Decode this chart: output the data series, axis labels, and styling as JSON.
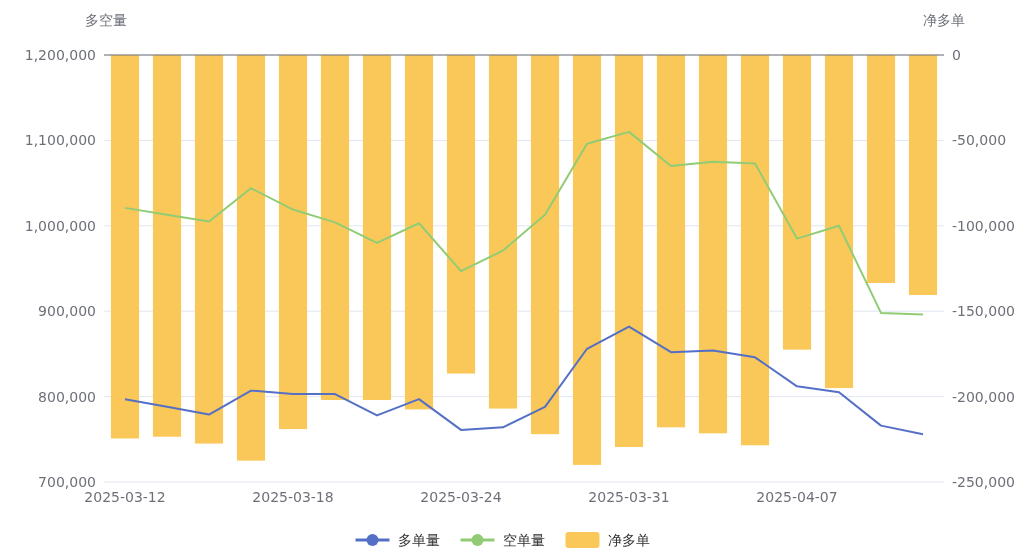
{
  "chart_data": {
    "type": "line",
    "ylabel": "多空量",
    "y2label": "净多单",
    "categories": [
      "2025-03-12",
      null,
      null,
      null,
      "2025-03-18",
      null,
      null,
      null,
      "2025-03-24",
      null,
      null,
      null,
      "2025-03-31",
      null,
      null,
      null,
      "2025-04-07",
      null,
      null,
      null
    ],
    "series": [
      {
        "name": "多单量",
        "color": "#5470c6",
        "values": [
          797000,
          788000,
          779000,
          807000,
          803000,
          803000,
          778000,
          797000,
          761000,
          764000,
          788000,
          856000,
          882000,
          852000,
          854000,
          846000,
          812000,
          805000,
          766000,
          756000
        ]
      },
      {
        "name": "空单量",
        "color": "#91cc75",
        "values": [
          1021000,
          1013000,
          1005000,
          1044000,
          1019000,
          1004000,
          980000,
          1003000,
          947000,
          971000,
          1013000,
          1096000,
          1110000,
          1070000,
          1075000,
          1073000,
          985000,
          1000000,
          898000,
          896000
        ]
      },
      {
        "name": "净多单",
        "type": "bar",
        "axis": "y2",
        "color": "#fac858",
        "values": [
          -224500,
          -223500,
          -227500,
          -237500,
          -219000,
          -202000,
          -202000,
          -207500,
          -186500,
          -207000,
          -222000,
          -240000,
          -229500,
          -218000,
          -221500,
          -228500,
          -172500,
          -195000,
          -133500,
          -140500
        ]
      }
    ],
    "ylim": [
      700000,
      1200000
    ],
    "yticks": [
      {
        "value": 700000,
        "label": "700,000"
      },
      {
        "value": 800000,
        "label": "800,000"
      },
      {
        "value": 900000,
        "label": "900,000"
      },
      {
        "value": 1000000,
        "label": "1,000,000"
      },
      {
        "value": 1100000,
        "label": "1,100,000"
      },
      {
        "value": 1200000,
        "label": "1,200,000"
      }
    ],
    "y2lim": [
      -250000,
      0
    ],
    "y2ticks": [
      {
        "value": -250000,
        "label": "-250,000"
      },
      {
        "value": -200000,
        "label": "-200,000"
      },
      {
        "value": -150000,
        "label": "-150,000"
      },
      {
        "value": -100000,
        "label": "-100,000"
      },
      {
        "value": -50000,
        "label": "-50,000"
      },
      0
    ],
    "grid": "y",
    "legend": "bottom",
    "marker": "none"
  }
}
